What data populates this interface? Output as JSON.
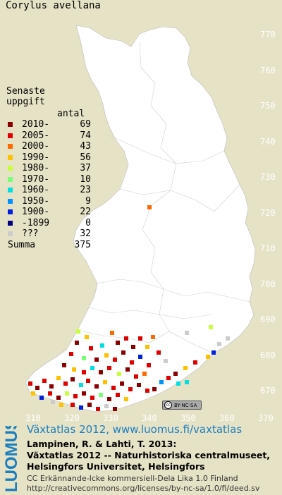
{
  "species": "Corylus avellana",
  "legend": {
    "heading_line1": "Senaste",
    "heading_line2": "uppgift",
    "count_header": "antal",
    "rows": [
      {
        "label": "2010-",
        "count": "69",
        "color": "#8b0000"
      },
      {
        "label": "2005-",
        "count": "74",
        "color": "#e00000"
      },
      {
        "label": "2000-",
        "count": "43",
        "color": "#ff6a00"
      },
      {
        "label": "1990-",
        "count": "56",
        "color": "#ffc000"
      },
      {
        "label": "1980-",
        "count": "37",
        "color": "#c8ff3c"
      },
      {
        "label": "1970-",
        "count": "10",
        "color": "#78ff78"
      },
      {
        "label": "1960-",
        "count": "23",
        "color": "#00e0e0"
      },
      {
        "label": "1950-",
        "count": "9",
        "color": "#0090ff"
      },
      {
        "label": "1900-",
        "count": "22",
        "color": "#0020e0"
      },
      {
        "label": "-1899",
        "count": "0",
        "color": "#000080"
      },
      {
        "label": "???",
        "count": "32",
        "color": "#cccccc"
      }
    ],
    "sum_label": "Summa",
    "sum_value": "375"
  },
  "axes": {
    "y_ticks": [
      "770",
      "760",
      "750",
      "740",
      "730",
      "720",
      "710",
      "700",
      "690",
      "680",
      "670"
    ],
    "x_ticks": [
      "310",
      "320",
      "330",
      "340",
      "350",
      "360",
      "370"
    ]
  },
  "license_badge": "BY-NC-SA",
  "footer": {
    "title": "Växtatlas 2012, www.luomus.fi/vaxtatlas",
    "cite_line1": "Lampinen, R. & Lahti, T. 2013:",
    "cite_line2": "Växtatlas 2012 -- Naturhistoriska centralmuseet,",
    "cite_line3": "Helsingfors Universitet, Helsingfors",
    "license_line1": "CC Erkännande-Icke kommersiell-Dela Lika 1.0 Finland",
    "license_line2": "http://creativecommons.org/licenses/by-nc-sa/1.0/fi/deed.sv",
    "logo_text": "LUOMUS"
  },
  "colors": {
    "background": "#e6e2c6",
    "land": "#ffffff",
    "grid_lines": "#c8c4a8",
    "footer_title": "#1a7fbf",
    "logo": "#1a7fbf"
  }
}
